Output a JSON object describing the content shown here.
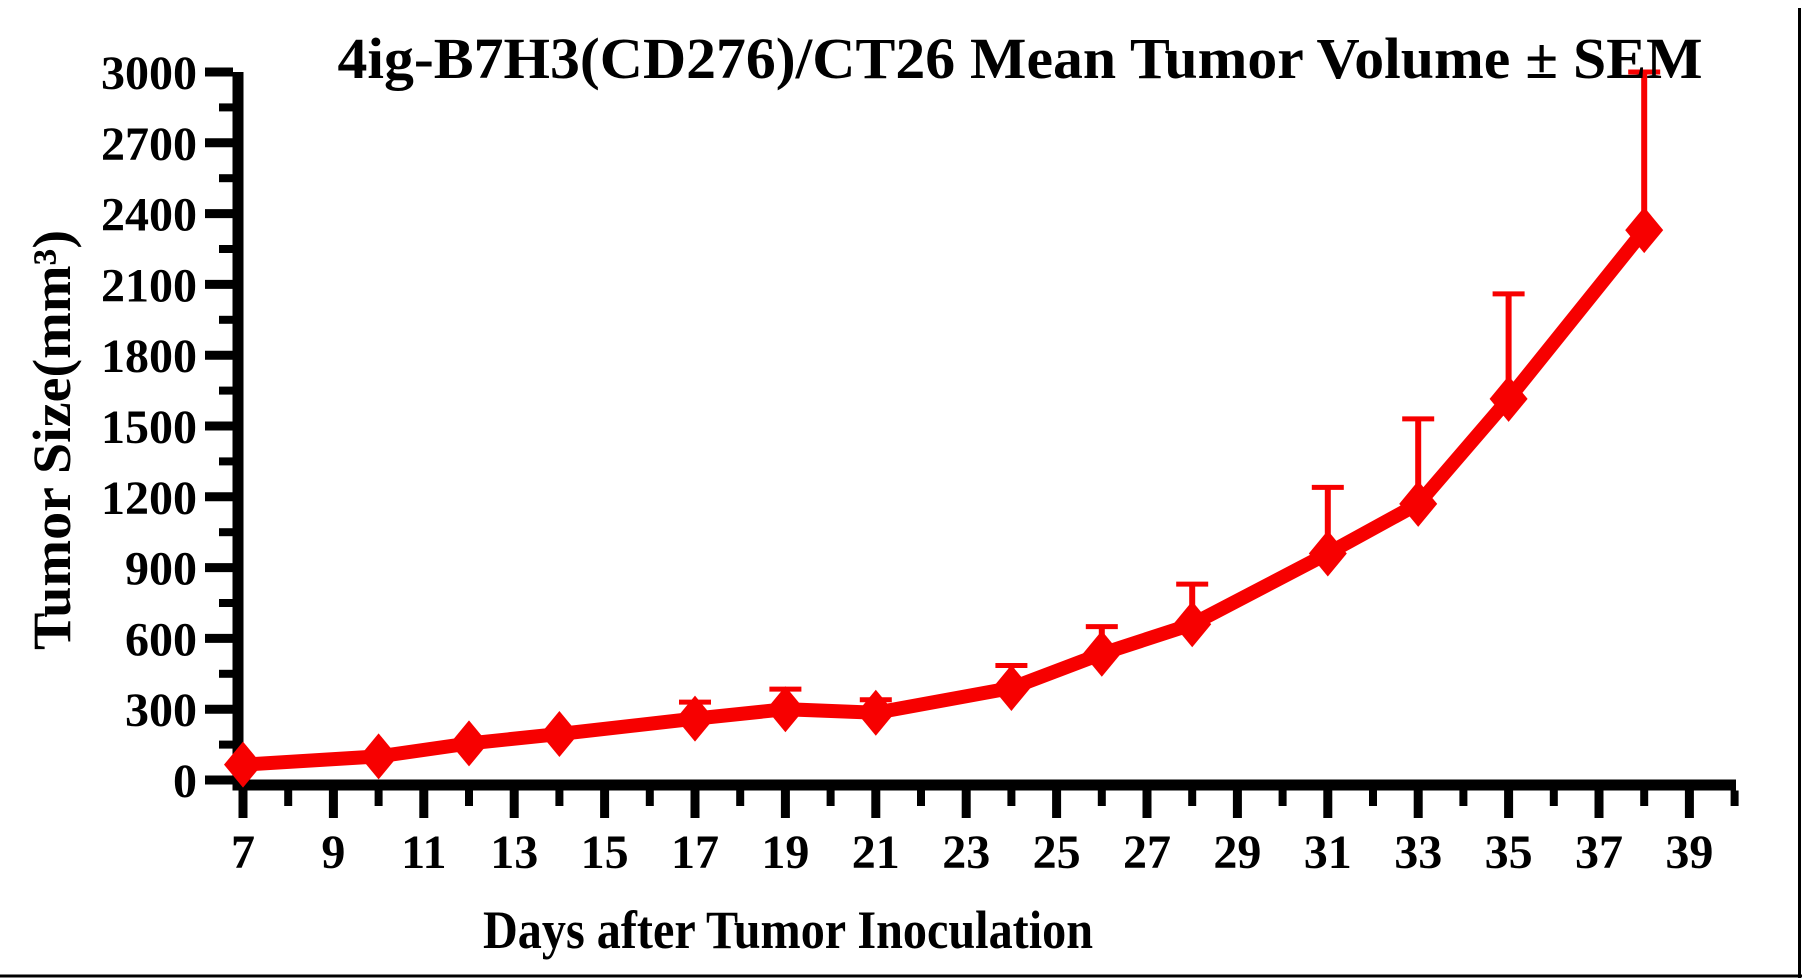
{
  "page": {
    "background_color": "#ffffff",
    "edge_border_color": "#000000"
  },
  "style": {
    "axis_color": "#000000",
    "text_color": "#000000",
    "series_color": "#f70000"
  },
  "chart_data": {
    "type": "line",
    "title": "4ig-B7H3(CD276)/CT26 Mean Tumor Volume ± SEM",
    "xlabel": "Days after Tumor Inoculation",
    "ylabel": "Tumor Size(mm³)",
    "grid": false,
    "legend": false,
    "error_bars": "upper SEM only, capped",
    "x_axis": {
      "min": 7,
      "max": 40,
      "major_ticks": [
        7,
        9,
        11,
        13,
        15,
        17,
        19,
        21,
        23,
        25,
        27,
        29,
        31,
        33,
        35,
        37,
        39
      ],
      "minor_ticks": [
        8,
        10,
        12,
        14,
        16,
        18,
        20,
        22,
        24,
        26,
        28,
        30,
        32,
        34,
        36,
        38,
        40
      ],
      "tick_labels": [
        "7",
        "9",
        "11",
        "13",
        "15",
        "17",
        "19",
        "21",
        "23",
        "25",
        "27",
        "29",
        "31",
        "33",
        "35",
        "37",
        "39"
      ]
    },
    "y_axis": {
      "min": 0,
      "max": 3000,
      "major_tick_step": 300,
      "minor_tick_step": 150,
      "tick_labels": [
        "0",
        "300",
        "600",
        "900",
        "1200",
        "1500",
        "1800",
        "2100",
        "2400",
        "2700",
        "3000"
      ]
    },
    "series": [
      {
        "name": "4ig-B7H3(CD276)/CT26 mean tumor volume",
        "color": "#f70000",
        "marker": "diamond",
        "x": [
          7,
          10,
          12,
          14,
          17,
          19,
          21,
          24,
          26,
          28,
          31,
          33,
          35,
          38
        ],
        "y": [
          65,
          100,
          155,
          195,
          260,
          300,
          285,
          390,
          535,
          660,
          960,
          1170,
          1615,
          2330
        ],
        "sem_upper": [
          null,
          null,
          null,
          null,
          70,
          85,
          55,
          95,
          115,
          170,
          280,
          360,
          445,
          670
        ]
      }
    ]
  }
}
